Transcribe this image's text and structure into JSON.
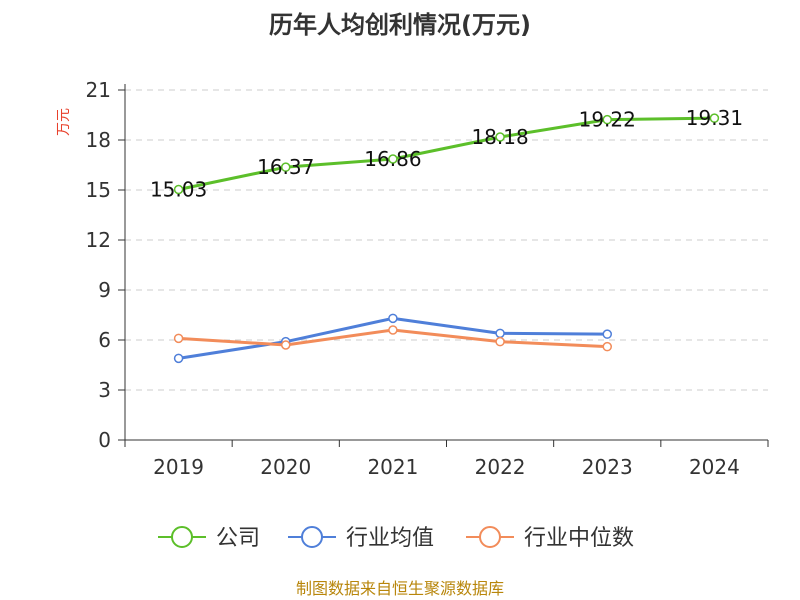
{
  "chart_data": {
    "type": "line",
    "title": "历年人均创利情况(万元)",
    "ylabel": "万元",
    "xlabel": "",
    "categories": [
      "2019",
      "2020",
      "2021",
      "2022",
      "2023",
      "2024"
    ],
    "ylim": [
      0,
      21
    ],
    "yticks": [
      0,
      3,
      6,
      9,
      12,
      15,
      18,
      21
    ],
    "grid": true,
    "legend_position": "bottom",
    "series": [
      {
        "name": "公司",
        "color": "#5cbf2a",
        "values": [
          15.03,
          16.37,
          16.86,
          18.18,
          19.22,
          19.31
        ],
        "labels": [
          "15.03",
          "16.37",
          "16.86",
          "18.18",
          "19.22",
          "19.31"
        ]
      },
      {
        "name": "行业均值",
        "color": "#4f7fd9",
        "values": [
          4.9,
          5.9,
          7.3,
          6.4,
          6.35,
          null
        ]
      },
      {
        "name": "行业中位数",
        "color": "#f28c5a",
        "values": [
          6.1,
          5.7,
          6.6,
          5.9,
          5.6,
          null
        ]
      }
    ]
  },
  "footer": {
    "source": "制图数据来自恒生聚源数据库"
  }
}
